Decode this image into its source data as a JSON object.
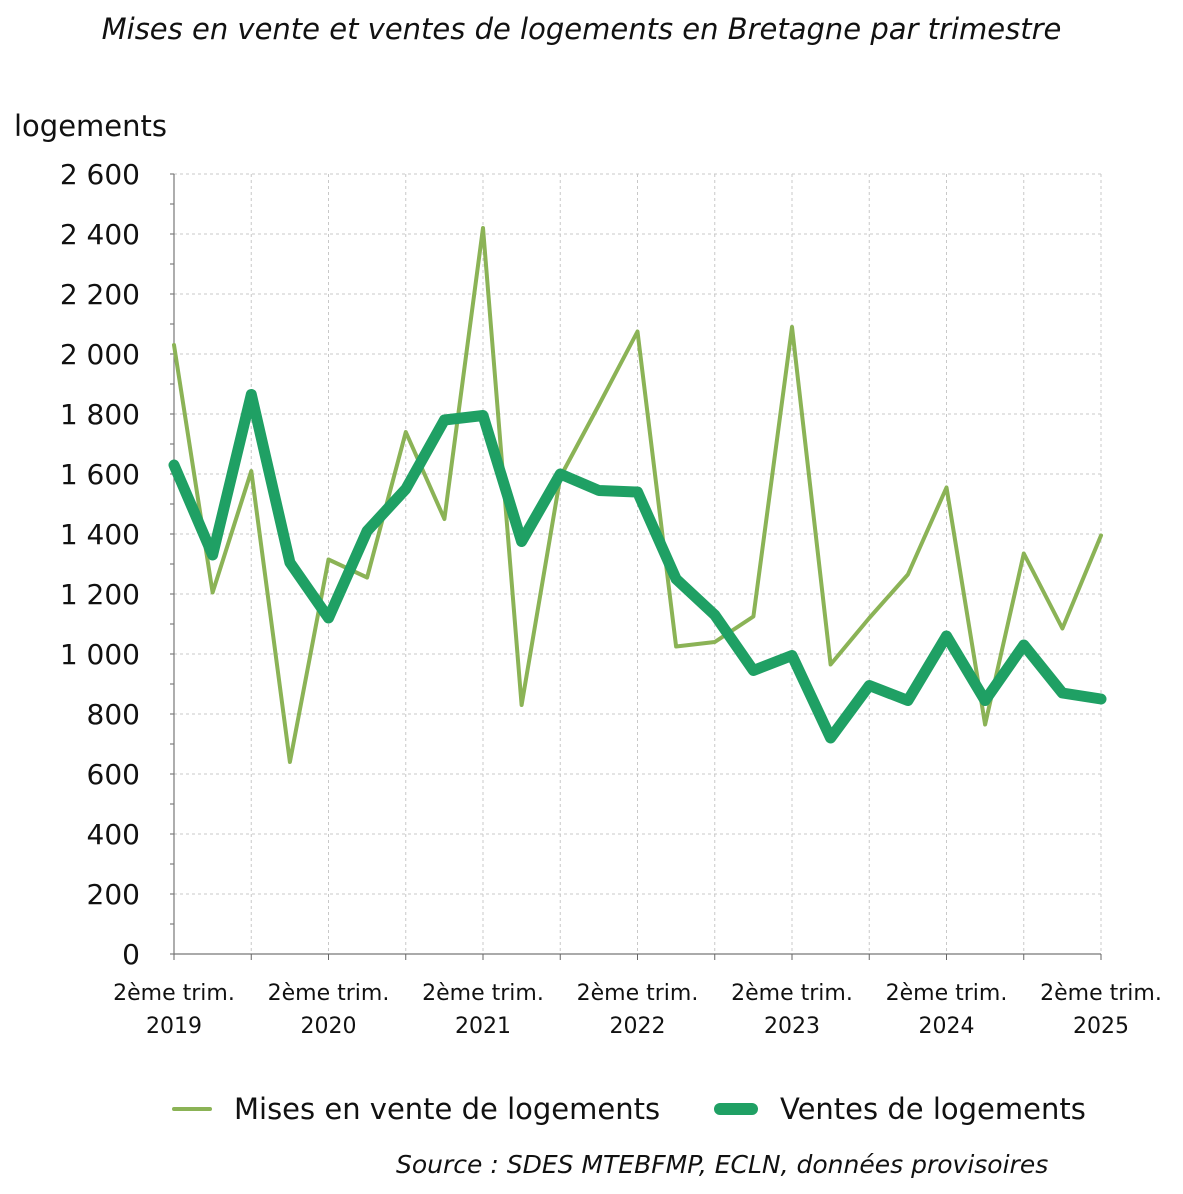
{
  "chart_data": {
    "type": "line",
    "title": "Mises en vente et ventes de logements en Bretagne par trimestre",
    "ylabel": "logements",
    "xlabel": "",
    "ylim": [
      0,
      2600
    ],
    "yticks": [
      "0",
      "200",
      "400",
      "600",
      "800",
      "1 000",
      "1 200",
      "1 400",
      "1 600",
      "1 800",
      "2 000",
      "2 200",
      "2 400",
      "2 600"
    ],
    "ytick_values": [
      0,
      200,
      400,
      600,
      800,
      1000,
      1200,
      1400,
      1600,
      1800,
      2000,
      2200,
      2400,
      2600
    ],
    "x": [
      "2019-T2",
      "2019-T3",
      "2019-T4",
      "2020-T1",
      "2020-T2",
      "2020-T3",
      "2020-T4",
      "2021-T1",
      "2021-T2",
      "2021-T3",
      "2021-T4",
      "2022-T1",
      "2022-T2",
      "2022-T3",
      "2022-T4",
      "2023-T1",
      "2023-T2",
      "2023-T3",
      "2023-T4",
      "2024-T1",
      "2024-T2",
      "2024-T3",
      "2024-T4",
      "2025-T1",
      "2025-T2"
    ],
    "xtick_labels": [
      {
        "line1": "2ème trim.",
        "line2": "2019"
      },
      {
        "line1": "2ème trim.",
        "line2": "2020"
      },
      {
        "line1": "2ème trim.",
        "line2": "2021"
      },
      {
        "line1": "2ème trim.",
        "line2": "2022"
      },
      {
        "line1": "2ème trim.",
        "line2": "2023"
      },
      {
        "line1": "2ème trim.",
        "line2": "2024"
      },
      {
        "line1": "2ème trim.",
        "line2": "2025"
      }
    ],
    "xtick_indices": [
      0,
      4,
      8,
      12,
      16,
      20,
      24
    ],
    "grid": true,
    "legend_position": "bottom",
    "series": [
      {
        "name": "Mises en vente de logements",
        "color": "#8bb356",
        "style": "thin",
        "values": [
          2030,
          1205,
          1610,
          640,
          1315,
          1255,
          1740,
          1450,
          2420,
          830,
          1590,
          1830,
          2075,
          1025,
          1040,
          1125,
          2090,
          965,
          1120,
          1265,
          1555,
          765,
          1335,
          1085,
          1395
        ]
      },
      {
        "name": "Ventes de logements",
        "color": "#1fa064",
        "style": "thick",
        "values": [
          1630,
          1330,
          1865,
          1305,
          1120,
          1410,
          1550,
          1780,
          1795,
          1375,
          1600,
          1545,
          1540,
          1250,
          1130,
          945,
          995,
          720,
          895,
          845,
          1060,
          845,
          1030,
          870,
          850
        ]
      }
    ]
  },
  "source": "Source : SDES MTEBFMP, ECLN, données provisoires"
}
